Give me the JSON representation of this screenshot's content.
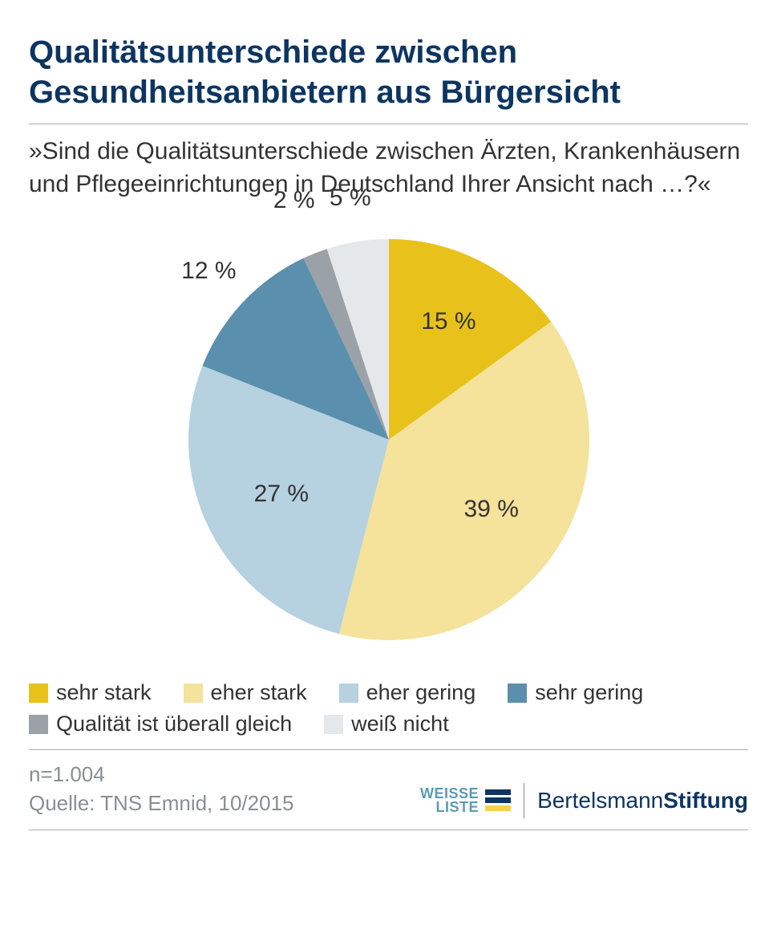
{
  "title": "Qualitätsunterschiede zwischen Gesundheitsanbietern aus Bürgersicht",
  "subtitle": "»Sind die Qualitätsunterschiede zwischen Ärzten, Krankenhäusern und Pflegeeinrichtungen in Deutschland Ihrer Ansicht nach …?«",
  "chart": {
    "type": "pie",
    "radius": 250,
    "start_angle_deg": 0,
    "background_color": "#ffffff",
    "label_fontsize": 30,
    "label_color": "#333333",
    "slices": [
      {
        "label": "sehr stark",
        "value": 15,
        "display": "15 %",
        "color": "#e8c21a",
        "label_r": 0.66
      },
      {
        "label": "eher stark",
        "value": 39,
        "display": "39 %",
        "color": "#f5e29b",
        "label_r": 0.62
      },
      {
        "label": "eher gering",
        "value": 27,
        "display": "27 %",
        "color": "#b6d1e0",
        "label_r": 0.6
      },
      {
        "label": "sehr gering",
        "value": 12,
        "display": "12 %",
        "color": "#5a90ad",
        "label_r": 1.23
      },
      {
        "label": "Qualität ist überall gleich",
        "value": 2,
        "display": "2 %",
        "color": "#9aa1a7",
        "label_r": 1.28
      },
      {
        "label": "weiß nicht",
        "value": 5,
        "display": "5 %",
        "color": "#e5e8ea",
        "label_r": 1.22
      }
    ]
  },
  "legend": [
    {
      "label": "sehr stark",
      "color": "#e8c21a"
    },
    {
      "label": "eher stark",
      "color": "#f5e29b"
    },
    {
      "label": "eher gering",
      "color": "#b6d1e0"
    },
    {
      "label": "sehr gering",
      "color": "#5a90ad"
    },
    {
      "label": "Qualität ist überall gleich",
      "color": "#9aa1a7"
    },
    {
      "label": "weiß nicht",
      "color": "#e5e8ea"
    }
  ],
  "footer": {
    "n": "n=1.004",
    "source": "Quelle: TNS Emnid, 10/2015"
  },
  "logos": {
    "weisse_liste": {
      "line1": "WEISSE",
      "line2": "LISTE",
      "bar_colors": [
        "#0d3561",
        "#0d3561",
        "#f5d24a"
      ]
    },
    "bertelsmann_light": "Bertelsmann",
    "bertelsmann_bold": "Stiftung"
  },
  "colors": {
    "title": "#0d3561",
    "rule": "#aab0b5",
    "meta": "#888e94",
    "wl_text": "#5a9bb5"
  }
}
